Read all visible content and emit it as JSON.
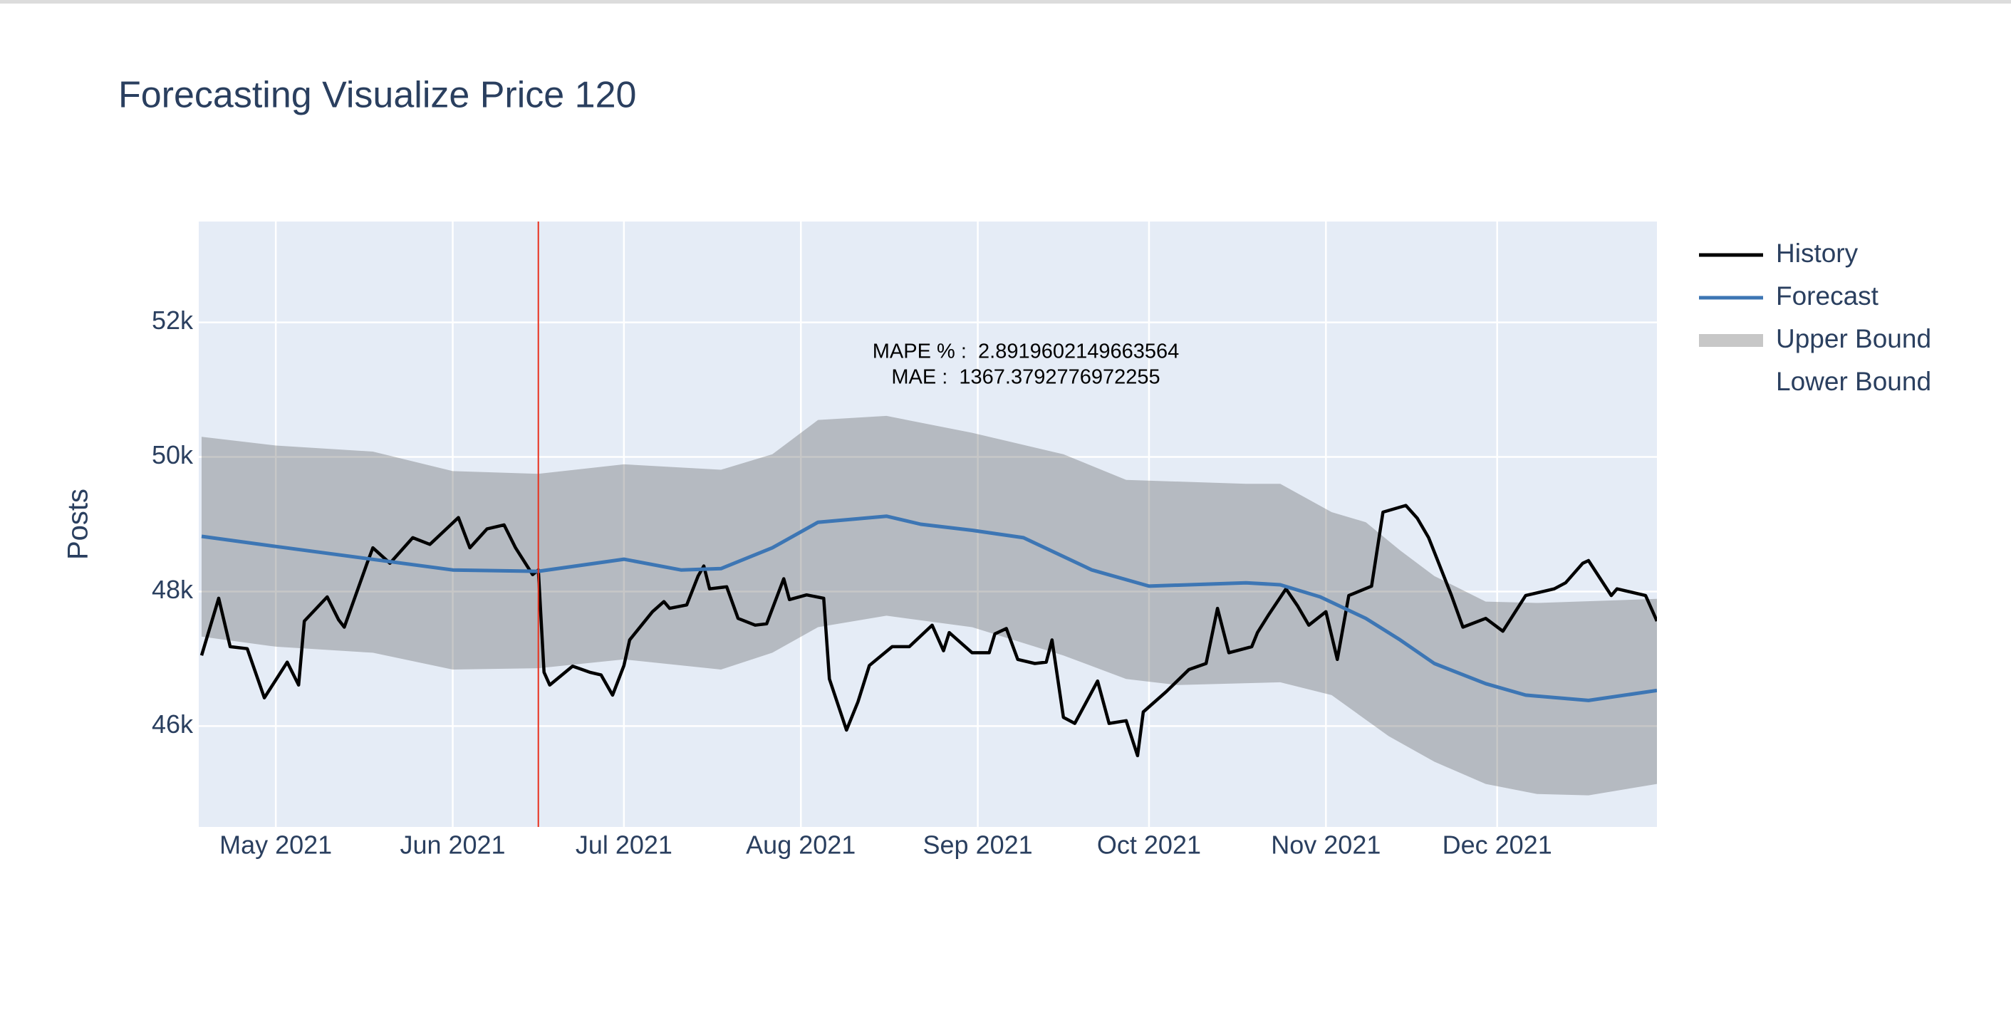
{
  "chart_data": {
    "type": "line",
    "title": "Forecasting Visualize Price 120",
    "y_label": "Posts",
    "annotations": [
      "MAPE % :  2.8919602149663564",
      "MAE :  1367.3792776972255"
    ],
    "xlim": [
      106.5,
      362
    ],
    "xticks": [
      {
        "value": 120,
        "label": "May 2021"
      },
      {
        "value": 151,
        "label": "Jun 2021"
      },
      {
        "value": 181,
        "label": "Jul 2021"
      },
      {
        "value": 212,
        "label": "Aug 2021"
      },
      {
        "value": 243,
        "label": "Sep 2021"
      },
      {
        "value": 273,
        "label": "Oct 2021"
      },
      {
        "value": 304,
        "label": "Nov 2021"
      },
      {
        "value": 334,
        "label": "Dec 2021"
      }
    ],
    "ylim": [
      44500,
      53500
    ],
    "yticks": [
      {
        "value": 46000,
        "label": "46k"
      },
      {
        "value": 48000,
        "label": "48k"
      },
      {
        "value": 50000,
        "label": "50k"
      },
      {
        "value": 52000,
        "label": "52k"
      }
    ],
    "grid": true,
    "plot_background": "#e5ecf6",
    "legend": "right",
    "vline": {
      "x": 166,
      "color": "#e8301c"
    },
    "series": [
      {
        "name": "History",
        "color": "#000000",
        "style": "line",
        "x": [
          107,
          110,
          112,
          115,
          118,
          122,
          124,
          125,
          129,
          131,
          132,
          136,
          137,
          140,
          144,
          147,
          152,
          154,
          157,
          160,
          162,
          165,
          166,
          167,
          168,
          172,
          175,
          177,
          179,
          181,
          182,
          186,
          188,
          189,
          192,
          194,
          195,
          196,
          199,
          201,
          204,
          206,
          209,
          210,
          213,
          216,
          217,
          220,
          222,
          224,
          228,
          231,
          235,
          237,
          238,
          242,
          245,
          246,
          248,
          250,
          253,
          255,
          256,
          258,
          260,
          264,
          266,
          269,
          271,
          272,
          276,
          280,
          283,
          285,
          287,
          291,
          292,
          294,
          297,
          299,
          301,
          304,
          306,
          308,
          312,
          314,
          318,
          320,
          322,
          326,
          328,
          332,
          335,
          339,
          344,
          346,
          349,
          350,
          354,
          355,
          360,
          362
        ],
        "values": [
          47050,
          47900,
          47180,
          47150,
          46420,
          46950,
          46610,
          47560,
          47920,
          47580,
          47470,
          48420,
          48650,
          48420,
          48800,
          48700,
          49100,
          48650,
          48930,
          48990,
          48650,
          48250,
          48320,
          46800,
          46610,
          46890,
          46800,
          46760,
          46460,
          46900,
          47280,
          47700,
          47850,
          47750,
          47800,
          48230,
          48380,
          48040,
          48070,
          47600,
          47500,
          47520,
          48190,
          47880,
          47950,
          47900,
          46700,
          45940,
          46360,
          46900,
          47180,
          47180,
          47500,
          47120,
          47390,
          47090,
          47090,
          47370,
          47450,
          46990,
          46930,
          46950,
          47280,
          46130,
          46040,
          46670,
          46040,
          46080,
          45560,
          46210,
          46510,
          46840,
          46930,
          47750,
          47090,
          47180,
          47390,
          47660,
          48040,
          47790,
          47500,
          47700,
          46990,
          47940,
          48080,
          49180,
          49280,
          49090,
          48800,
          47940,
          47470,
          47600,
          47410,
          47940,
          48040,
          48130,
          48420,
          48460,
          47940,
          48040,
          47940,
          47560
        ]
      },
      {
        "name": "Forecast",
        "color": "#3d76b4",
        "style": "line",
        "x": [
          107,
          120,
          151,
          166,
          181,
          191,
          198,
          207,
          215,
          227,
          233,
          242,
          251,
          263,
          273,
          290,
          296,
          303,
          311,
          317,
          323,
          332,
          339,
          350,
          362
        ],
        "values": [
          48820,
          48670,
          48320,
          48300,
          48480,
          48320,
          48340,
          48650,
          49030,
          49120,
          49000,
          48910,
          48800,
          48320,
          48080,
          48130,
          48100,
          47920,
          47600,
          47280,
          46930,
          46630,
          46460,
          46380,
          46530
        ]
      },
      {
        "name": "Upper Bound",
        "color": "rgba(68,68,68,0.3)",
        "style": "band",
        "x": [
          107,
          120,
          137,
          151,
          166,
          181,
          198,
          207,
          215,
          227,
          242,
          258,
          269,
          290,
          296,
          305,
          311,
          317,
          323,
          332,
          341,
          362
        ],
        "values": [
          50300,
          50170,
          50080,
          49790,
          49750,
          49890,
          49810,
          50040,
          50550,
          50610,
          50360,
          50040,
          49660,
          49600,
          49600,
          49180,
          49030,
          48610,
          48230,
          47850,
          47830,
          47890
        ]
      },
      {
        "name": "Lower Bound",
        "style": "band_edge",
        "x": [
          107,
          120,
          137,
          151,
          166,
          181,
          198,
          207,
          215,
          227,
          242,
          258,
          269,
          278,
          296,
          305,
          315,
          323,
          332,
          341,
          350,
          362
        ],
        "values": [
          47330,
          47180,
          47090,
          46840,
          46860,
          46990,
          46840,
          47090,
          47470,
          47640,
          47470,
          47050,
          46700,
          46610,
          46650,
          46460,
          45850,
          45470,
          45140,
          44990,
          44970,
          45140
        ]
      }
    ]
  }
}
